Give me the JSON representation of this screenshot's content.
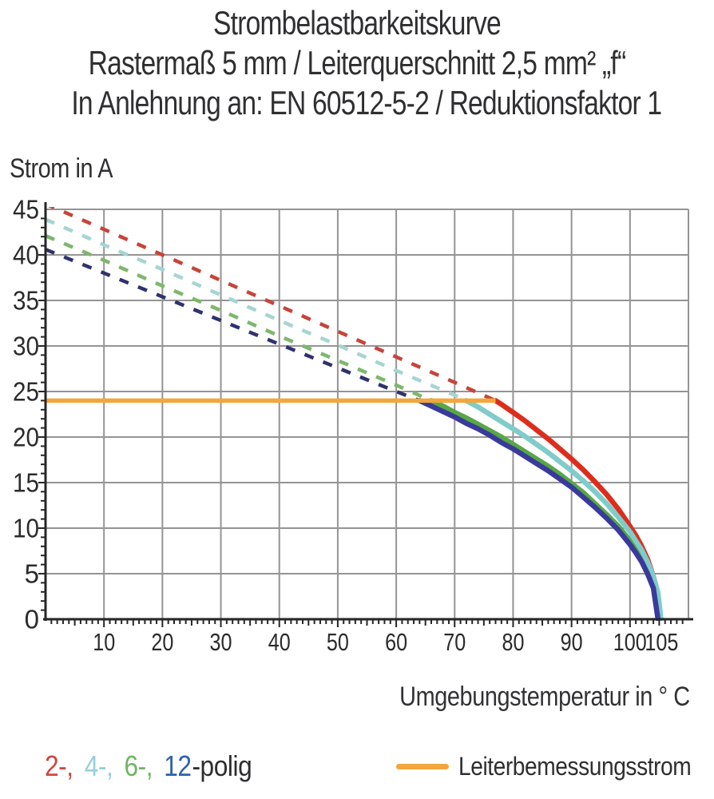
{
  "title": {
    "line1": "Strombelastbarkeitskurve",
    "line2": "Rastermaß 5 mm / Leiterquerschnitt 2,5 mm² „f“",
    "line3": "In Anlehnung an: EN 60512-5-2 / Reduktionsfaktor 1"
  },
  "axis": {
    "y_label": "Strom in A",
    "x_label": "Umgebungstemperatur in ° C"
  },
  "legend": {
    "poles": [
      {
        "label": "2-,",
        "color": "#cb4840"
      },
      {
        "label": "4-,",
        "color": "#96cfdb"
      },
      {
        "label": "6-,",
        "color": "#72b564"
      },
      {
        "label": "12",
        "color": "#2f62ae"
      }
    ],
    "poles_suffix": "-polig",
    "rated_current_label": "Leiterbemessungsstrom",
    "rated_current_color": "#f2a63d"
  },
  "chart_data": {
    "type": "line",
    "title": "Strombelastbarkeitskurve",
    "subtitle": "Rastermaß 5 mm / Leiterquerschnitt 2,5 mm² „f“",
    "standard_note": "In Anlehnung an: EN 60512-5-2 / Reduktionsfaktor 1",
    "xlabel": "Umgebungstemperatur in ° C",
    "ylabel": "Strom in A",
    "x_unit": "°C",
    "y_unit": "A",
    "xlim": [
      0,
      110
    ],
    "ylim": [
      0,
      45
    ],
    "x_ticks": [
      10,
      20,
      30,
      40,
      50,
      60,
      70,
      80,
      90,
      100,
      105
    ],
    "y_ticks": [
      0,
      5,
      10,
      15,
      20,
      25,
      30,
      35,
      40,
      45
    ],
    "x_gridlines": [
      10,
      20,
      30,
      40,
      50,
      60,
      70,
      80,
      90,
      100,
      110
    ],
    "y_gridlines": [
      5,
      10,
      15,
      20,
      25,
      30,
      35,
      40,
      45
    ],
    "grid": true,
    "grid_color": "#949494",
    "axis_color": "#262626",
    "rated_current": {
      "label": "Leiterbemessungsstrom",
      "value_A": 24,
      "x_start": 0,
      "x_end": 77,
      "color": "#f2a63d"
    },
    "series": [
      {
        "name": "2-polig",
        "poles": 2,
        "dash_color": "#c7443a",
        "solid_color": "#dd2d1d",
        "dashed_points": [
          [
            0,
            45.6
          ],
          [
            10,
            42.8
          ],
          [
            20,
            40.0
          ],
          [
            30,
            37.2
          ],
          [
            40,
            34.4
          ],
          [
            50,
            31.6
          ],
          [
            60,
            28.8
          ],
          [
            70,
            26.0
          ],
          [
            77,
            24.0
          ]
        ],
        "solid_points": [
          [
            77,
            24.0
          ],
          [
            78,
            23.6
          ],
          [
            80,
            22.7
          ],
          [
            82,
            21.8
          ],
          [
            84,
            20.8
          ],
          [
            86,
            19.8
          ],
          [
            88,
            18.7
          ],
          [
            90,
            17.6
          ],
          [
            92,
            16.4
          ],
          [
            94,
            15.1
          ],
          [
            96,
            13.7
          ],
          [
            98,
            12.1
          ],
          [
            100,
            10.2
          ],
          [
            101,
            9.2
          ],
          [
            102,
            8.0
          ],
          [
            103,
            6.6
          ],
          [
            104,
            4.7
          ],
          [
            104.6,
            3.2
          ],
          [
            105.1,
            0
          ]
        ]
      },
      {
        "name": "4-polig",
        "poles": 4,
        "dash_color": "#a5d5d2",
        "solid_color": "#7fccca",
        "dashed_points": [
          [
            0,
            43.9
          ],
          [
            10,
            41.1
          ],
          [
            20,
            38.4
          ],
          [
            30,
            35.6
          ],
          [
            40,
            32.8
          ],
          [
            50,
            30.1
          ],
          [
            60,
            27.3
          ],
          [
            70,
            24.6
          ],
          [
            72,
            24.0
          ]
        ],
        "solid_points": [
          [
            72,
            24.0
          ],
          [
            74,
            23.3
          ],
          [
            76,
            22.5
          ],
          [
            78,
            21.7
          ],
          [
            80,
            20.9
          ],
          [
            82,
            20.1
          ],
          [
            84,
            19.2
          ],
          [
            86,
            18.3
          ],
          [
            88,
            17.3
          ],
          [
            90,
            16.3
          ],
          [
            92,
            15.2
          ],
          [
            94,
            14.0
          ],
          [
            96,
            12.7
          ],
          [
            98,
            11.2
          ],
          [
            100,
            9.6
          ],
          [
            101,
            8.6
          ],
          [
            102,
            7.6
          ],
          [
            103,
            6.3
          ],
          [
            104,
            4.7
          ],
          [
            104.8,
            2.9
          ],
          [
            105.3,
            0
          ]
        ]
      },
      {
        "name": "6-polig",
        "poles": 6,
        "dash_color": "#7db76c",
        "solid_color": "#57a746",
        "dashed_points": [
          [
            0,
            42.1
          ],
          [
            10,
            39.4
          ],
          [
            20,
            36.6
          ],
          [
            30,
            33.9
          ],
          [
            40,
            31.1
          ],
          [
            50,
            28.4
          ],
          [
            60,
            25.7
          ],
          [
            66,
            24.0
          ]
        ],
        "solid_points": [
          [
            66,
            24.0
          ],
          [
            68,
            23.4
          ],
          [
            70,
            22.7
          ],
          [
            72,
            22.1
          ],
          [
            74,
            21.4
          ],
          [
            76,
            20.7
          ],
          [
            78,
            20.0
          ],
          [
            80,
            19.2
          ],
          [
            82,
            18.4
          ],
          [
            84,
            17.6
          ],
          [
            86,
            16.8
          ],
          [
            88,
            15.9
          ],
          [
            90,
            14.9
          ],
          [
            92,
            13.9
          ],
          [
            94,
            12.7
          ],
          [
            96,
            11.5
          ],
          [
            98,
            10.2
          ],
          [
            100,
            8.6
          ],
          [
            101,
            7.7
          ],
          [
            102,
            6.7
          ],
          [
            103,
            5.4
          ],
          [
            104,
            3.8
          ],
          [
            104.6,
            2.4
          ],
          [
            105,
            0
          ]
        ]
      },
      {
        "name": "12-polig",
        "poles": 12,
        "dash_color": "#30316e",
        "solid_color": "#3a3a9c",
        "dashed_points": [
          [
            0,
            40.6
          ],
          [
            10,
            38.0
          ],
          [
            20,
            35.4
          ],
          [
            30,
            32.8
          ],
          [
            40,
            30.2
          ],
          [
            50,
            27.6
          ],
          [
            60,
            25.0
          ],
          [
            64,
            24.0
          ]
        ],
        "solid_points": [
          [
            64,
            24.0
          ],
          [
            66,
            23.4
          ],
          [
            68,
            22.8
          ],
          [
            70,
            22.2
          ],
          [
            72,
            21.5
          ],
          [
            74,
            20.9
          ],
          [
            76,
            20.2
          ],
          [
            78,
            19.4
          ],
          [
            80,
            18.7
          ],
          [
            82,
            17.9
          ],
          [
            84,
            17.1
          ],
          [
            86,
            16.3
          ],
          [
            88,
            15.4
          ],
          [
            90,
            14.5
          ],
          [
            92,
            13.4
          ],
          [
            94,
            12.3
          ],
          [
            96,
            11.1
          ],
          [
            98,
            9.8
          ],
          [
            100,
            8.2
          ],
          [
            101,
            7.3
          ],
          [
            102,
            6.3
          ],
          [
            103,
            5.0
          ],
          [
            104,
            3.4
          ],
          [
            104.8,
            0
          ]
        ]
      }
    ]
  }
}
